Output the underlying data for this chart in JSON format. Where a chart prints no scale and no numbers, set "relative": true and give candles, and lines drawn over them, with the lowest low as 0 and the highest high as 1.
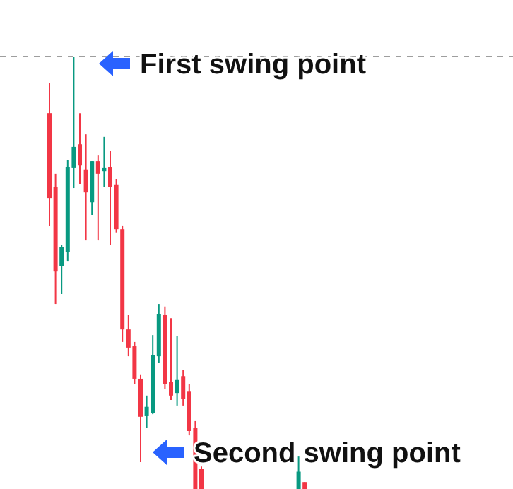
{
  "chart_data": {
    "type": "candlestick",
    "relative": true,
    "categories": [
      null,
      null,
      null,
      null,
      null,
      null,
      null,
      null,
      null,
      null,
      null,
      null,
      null,
      null,
      null,
      null,
      null,
      null,
      null,
      null,
      null,
      null,
      null,
      null,
      null,
      null,
      null,
      null,
      null,
      null,
      null,
      null,
      null,
      null,
      null,
      null,
      null,
      null,
      null,
      null,
      null,
      null,
      null,
      null,
      null,
      null,
      null,
      null,
      null,
      null,
      null,
      null,
      null,
      null,
      null,
      null,
      null,
      null,
      null,
      null,
      null,
      null,
      null,
      null,
      null,
      null,
      null,
      null,
      null,
      null,
      null,
      null,
      null,
      null,
      null,
      null,
      null
    ],
    "ohlc": [
      [
        0.869,
        0.938,
        0.608,
        0.673
      ],
      [
        0.699,
        0.729,
        0.428,
        0.503
      ],
      [
        0.516,
        0.565,
        0.451,
        0.559
      ],
      [
        0.549,
        0.761,
        0.526,
        0.745
      ],
      [
        0.742,
        1,
        0.696,
        0.791
      ],
      [
        0.797,
        0.869,
        0.706,
        0.748
      ],
      [
        0.739,
        0.82,
        0.575,
        0.686
      ],
      [
        0.663,
        0.758,
        0.634,
        0.758
      ],
      [
        0.758,
        0.771,
        0.575,
        0.729
      ],
      [
        0.735,
        0.814,
        0.699,
        0.742
      ],
      [
        0.745,
        0.781,
        0.565,
        0.699
      ],
      [
        0.703,
        0.716,
        0.592,
        0.601
      ],
      [
        0.601,
        0.608,
        0.34,
        0.369
      ],
      [
        0.369,
        0.402,
        0.307,
        0.327
      ],
      [
        0.33,
        0.34,
        0.242,
        0.255
      ],
      [
        0.255,
        0.265,
        0.062,
        0.167
      ],
      [
        0.17,
        0.216,
        0.141,
        0.19
      ],
      [
        0.176,
        0.356,
        0.173,
        0.31
      ],
      [
        0.307,
        0.428,
        0.291,
        0.405
      ],
      [
        0.402,
        0.422,
        0.232,
        0.242
      ],
      [
        0.248,
        0.395,
        0.206,
        0.216
      ],
      [
        0.222,
        0.353,
        0.193,
        0.252
      ],
      [
        0.261,
        0.275,
        0.193,
        0.209
      ],
      [
        0.225,
        0.242,
        0.124,
        0.134
      ],
      [
        0.141,
        0.157,
        0,
        0
      ],
      [
        0.046,
        0.052,
        0,
        0
      ],
      null,
      null,
      null,
      null,
      null,
      null,
      null,
      null,
      null,
      null,
      null,
      null,
      null,
      null,
      null,
      [
        0,
        0.075,
        0,
        0.04
      ],
      [
        0.016,
        0.016,
        0,
        0
      ],
      null,
      null,
      null,
      null,
      null,
      null,
      null,
      null,
      null,
      null,
      null,
      null,
      null,
      null,
      null,
      null,
      null,
      null,
      null,
      null,
      null,
      null,
      null,
      null,
      null,
      null,
      null,
      null,
      null,
      null,
      null,
      null,
      null,
      null
    ],
    "colors": [
      "#f23645",
      "#f23645",
      "#089981",
      "#089981",
      "#089981",
      "#f23645",
      "#f23645",
      "#089981",
      "#f23645",
      "#089981",
      "#f23645",
      "#f23645",
      "#f23645",
      "#f23645",
      "#f23645",
      "#f23645",
      "#089981",
      "#089981",
      "#089981",
      "#f23645",
      "#f23645",
      "#089981",
      "#f23645",
      "#f23645",
      "#f23645",
      "#f23645",
      null,
      null,
      null,
      null,
      null,
      null,
      null,
      null,
      null,
      null,
      null,
      null,
      null,
      null,
      null,
      "#089981",
      "#f23645",
      null,
      null,
      null,
      null,
      null,
      null,
      null,
      null,
      null,
      null,
      null,
      null,
      null,
      null,
      null,
      null,
      null,
      null,
      null,
      null,
      null,
      null,
      null,
      null,
      null,
      null,
      null,
      null,
      null,
      null,
      null,
      null,
      null,
      null
    ],
    "ref_lines": [
      {
        "axis": "y",
        "value": 1,
        "color": "#9e9e9e",
        "line_style": "dashed"
      }
    ],
    "annotations": [
      "First swing point",
      "Second swing point"
    ]
  }
}
